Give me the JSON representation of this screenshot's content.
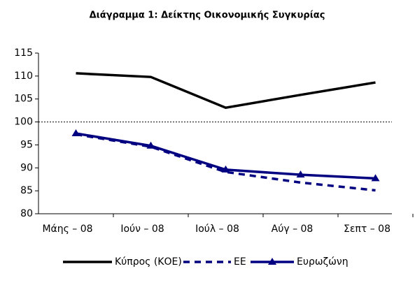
{
  "chart_data": {
    "type": "line",
    "title": "Διάγραμμα 1: Δείκτης Οικονομικής Συγκυρίας",
    "categories": [
      "Μάης – 08",
      "Ιούν – 08",
      "Ιούλ – 08",
      "Αύγ – 08",
      "Σεπτ – 08"
    ],
    "series": [
      {
        "name": "Κύπρος (ΚΟΕ)",
        "color": "#000000",
        "values": [
          110.6,
          109.8,
          103.1,
          105.9,
          108.6
        ],
        "dash": false,
        "marker": "none"
      },
      {
        "name": "ΕΕ",
        "color": "#000080",
        "values": [
          97.3,
          94.6,
          89.1,
          86.8,
          85.1
        ],
        "dash": true,
        "marker": "none"
      },
      {
        "name": "Ευρωζώνη",
        "color": "#000080",
        "values": [
          97.5,
          94.8,
          89.6,
          88.5,
          87.7
        ],
        "dash": false,
        "marker": "triangle"
      }
    ],
    "reference_line": 100,
    "ylim": [
      80,
      115
    ],
    "yticks": [
      80,
      85,
      90,
      95,
      100,
      105,
      110,
      115
    ],
    "legend": "bottom"
  }
}
